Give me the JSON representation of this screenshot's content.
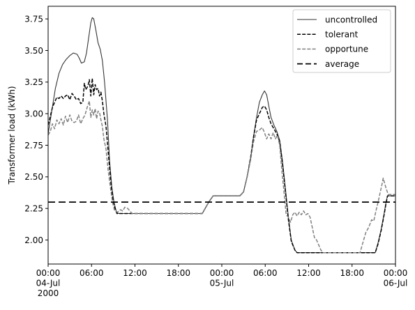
{
  "chart_data": {
    "type": "line",
    "title": "",
    "xlabel": "",
    "ylabel": "Transformer load (kWh)",
    "x_unit": "hours from 00:00 04-Jul 2000",
    "xlim": [
      0,
      48
    ],
    "ylim": [
      1.81,
      3.85
    ],
    "grid": false,
    "legend_position": "top-right",
    "x_ticks": [
      {
        "x": 0,
        "lines": [
          "00:00",
          "04-Jul",
          "2000"
        ]
      },
      {
        "x": 6,
        "lines": [
          "06:00"
        ]
      },
      {
        "x": 12,
        "lines": [
          "12:00"
        ]
      },
      {
        "x": 18,
        "lines": [
          "18:00"
        ]
      },
      {
        "x": 24,
        "lines": [
          "00:00",
          "05-Jul"
        ]
      },
      {
        "x": 30,
        "lines": [
          "06:00"
        ]
      },
      {
        "x": 36,
        "lines": [
          "12:00"
        ]
      },
      {
        "x": 42,
        "lines": [
          "18:00"
        ]
      },
      {
        "x": 48,
        "lines": [
          "00:00",
          "06-Jul"
        ]
      }
    ],
    "y_ticks": [
      2.0,
      2.25,
      2.5,
      2.75,
      3.0,
      3.25,
      3.5,
      3.75
    ],
    "y_tick_labels": [
      "2.00",
      "2.25",
      "2.50",
      "2.75",
      "3.00",
      "3.25",
      "3.50",
      "3.75"
    ],
    "series": [
      {
        "name": "uncontrolled",
        "color": "#333333",
        "style": "solid",
        "points": [
          [
            0,
            2.84
          ],
          [
            0.5,
            3.02
          ],
          [
            1,
            3.2
          ],
          [
            1.5,
            3.32
          ],
          [
            2,
            3.39
          ],
          [
            2.5,
            3.43
          ],
          [
            3,
            3.46
          ],
          [
            3.5,
            3.48
          ],
          [
            4,
            3.47
          ],
          [
            4.3,
            3.44
          ],
          [
            4.6,
            3.4
          ],
          [
            5,
            3.41
          ],
          [
            5.3,
            3.48
          ],
          [
            5.6,
            3.6
          ],
          [
            5.9,
            3.72
          ],
          [
            6.1,
            3.76
          ],
          [
            6.3,
            3.75
          ],
          [
            6.6,
            3.66
          ],
          [
            6.9,
            3.56
          ],
          [
            7.2,
            3.51
          ],
          [
            7.5,
            3.42
          ],
          [
            7.8,
            3.25
          ],
          [
            8.2,
            2.95
          ],
          [
            8.5,
            2.62
          ],
          [
            8.8,
            2.42
          ],
          [
            9.1,
            2.3
          ],
          [
            9.4,
            2.23
          ],
          [
            9.7,
            2.21
          ],
          [
            12,
            2.21
          ],
          [
            16,
            2.21
          ],
          [
            20,
            2.21
          ],
          [
            21.3,
            2.21
          ],
          [
            22.2,
            2.3
          ],
          [
            22.8,
            2.35
          ],
          [
            26.5,
            2.35
          ],
          [
            27,
            2.38
          ],
          [
            27.5,
            2.5
          ],
          [
            28,
            2.65
          ],
          [
            28.4,
            2.82
          ],
          [
            28.8,
            2.97
          ],
          [
            29.2,
            3.09
          ],
          [
            29.6,
            3.15
          ],
          [
            29.9,
            3.18
          ],
          [
            30.2,
            3.15
          ],
          [
            30.5,
            3.06
          ],
          [
            30.8,
            2.97
          ],
          [
            31.2,
            2.91
          ],
          [
            31.6,
            2.86
          ],
          [
            32,
            2.79
          ],
          [
            32.4,
            2.62
          ],
          [
            32.8,
            2.4
          ],
          [
            33.2,
            2.18
          ],
          [
            33.6,
            2.0
          ],
          [
            34.1,
            1.92
          ],
          [
            34.4,
            1.9
          ],
          [
            38,
            1.9
          ],
          [
            42,
            1.9
          ],
          [
            45.2,
            1.9
          ],
          [
            45.6,
            1.98
          ],
          [
            46,
            2.08
          ],
          [
            46.4,
            2.2
          ],
          [
            46.7,
            2.3
          ],
          [
            46.9,
            2.35
          ],
          [
            48,
            2.35
          ]
        ]
      },
      {
        "name": "tolerant",
        "color": "#000000",
        "style": "dashed",
        "points": [
          [
            0,
            2.91
          ],
          [
            0.3,
            2.98
          ],
          [
            0.6,
            3.05
          ],
          [
            0.9,
            3.09
          ],
          [
            1.2,
            3.13
          ],
          [
            1.5,
            3.12
          ],
          [
            1.8,
            3.14
          ],
          [
            2.1,
            3.12
          ],
          [
            2.4,
            3.14
          ],
          [
            2.7,
            3.15
          ],
          [
            3,
            3.11
          ],
          [
            3.3,
            3.16
          ],
          [
            3.6,
            3.14
          ],
          [
            3.9,
            3.11
          ],
          [
            4.2,
            3.12
          ],
          [
            4.5,
            3.08
          ],
          [
            4.8,
            3.09
          ],
          [
            5,
            3.24
          ],
          [
            5.2,
            3.19
          ],
          [
            5.5,
            3.22
          ],
          [
            5.7,
            3.27
          ],
          [
            5.9,
            3.14
          ],
          [
            6.1,
            3.28
          ],
          [
            6.3,
            3.15
          ],
          [
            6.5,
            3.23
          ],
          [
            6.7,
            3.19
          ],
          [
            6.9,
            3.2
          ],
          [
            7.1,
            3.14
          ],
          [
            7.3,
            3.17
          ],
          [
            7.5,
            3.1
          ],
          [
            7.7,
            3.0
          ],
          [
            8,
            2.9
          ],
          [
            8.3,
            2.7
          ],
          [
            8.6,
            2.5
          ],
          [
            8.9,
            2.34
          ],
          [
            9.2,
            2.26
          ],
          [
            9.5,
            2.21
          ],
          [
            12,
            2.21
          ],
          [
            16,
            2.21
          ],
          [
            20,
            2.21
          ],
          [
            21.3,
            2.21
          ],
          [
            22.2,
            2.3
          ],
          [
            22.8,
            2.35
          ],
          [
            26.5,
            2.35
          ],
          [
            27,
            2.38
          ],
          [
            27.5,
            2.5
          ],
          [
            28,
            2.66
          ],
          [
            28.4,
            2.82
          ],
          [
            28.8,
            2.95
          ],
          [
            29.2,
            3.0
          ],
          [
            29.6,
            3.05
          ],
          [
            29.9,
            3.06
          ],
          [
            30.2,
            3.03
          ],
          [
            30.5,
            2.97
          ],
          [
            30.8,
            2.92
          ],
          [
            31.2,
            2.88
          ],
          [
            31.6,
            2.84
          ],
          [
            32,
            2.78
          ],
          [
            32.4,
            2.6
          ],
          [
            32.8,
            2.38
          ],
          [
            33.2,
            2.16
          ],
          [
            33.6,
            1.99
          ],
          [
            34.1,
            1.92
          ],
          [
            34.4,
            1.9
          ],
          [
            38,
            1.9
          ],
          [
            42,
            1.9
          ],
          [
            45.2,
            1.9
          ],
          [
            45.6,
            1.97
          ],
          [
            46,
            2.07
          ],
          [
            46.4,
            2.19
          ],
          [
            46.7,
            2.29
          ],
          [
            46.9,
            2.35
          ],
          [
            48,
            2.35
          ]
        ]
      },
      {
        "name": "opportune",
        "color": "#808080",
        "style": "dashed",
        "points": [
          [
            0,
            2.83
          ],
          [
            0.3,
            2.86
          ],
          [
            0.6,
            2.92
          ],
          [
            0.9,
            2.88
          ],
          [
            1.2,
            2.95
          ],
          [
            1.5,
            2.92
          ],
          [
            1.8,
            2.96
          ],
          [
            2.1,
            2.91
          ],
          [
            2.4,
            2.98
          ],
          [
            2.7,
            2.93
          ],
          [
            3,
            2.99
          ],
          [
            3.3,
            2.94
          ],
          [
            3.6,
            2.93
          ],
          [
            3.9,
            2.94
          ],
          [
            4.2,
            2.99
          ],
          [
            4.5,
            2.92
          ],
          [
            4.8,
            2.96
          ],
          [
            5.1,
            2.99
          ],
          [
            5.4,
            3.05
          ],
          [
            5.7,
            3.1
          ],
          [
            5.9,
            2.97
          ],
          [
            6.1,
            3.03
          ],
          [
            6.3,
            2.99
          ],
          [
            6.5,
            3.04
          ],
          [
            6.7,
            2.96
          ],
          [
            6.9,
            3.02
          ],
          [
            7.1,
            3.01
          ],
          [
            7.3,
            2.95
          ],
          [
            7.5,
            2.9
          ],
          [
            7.7,
            2.8
          ],
          [
            8,
            2.72
          ],
          [
            8.3,
            2.55
          ],
          [
            8.6,
            2.42
          ],
          [
            8.9,
            2.3
          ],
          [
            9.2,
            2.23
          ],
          [
            9.6,
            2.22
          ],
          [
            10,
            2.24
          ],
          [
            10.3,
            2.23
          ],
          [
            10.6,
            2.26
          ],
          [
            11,
            2.25
          ],
          [
            11.3,
            2.23
          ],
          [
            11.6,
            2.21
          ],
          [
            12,
            2.21
          ],
          [
            16,
            2.21
          ],
          [
            20,
            2.21
          ],
          [
            21.3,
            2.21
          ],
          [
            22.2,
            2.3
          ],
          [
            22.8,
            2.35
          ],
          [
            26.5,
            2.35
          ],
          [
            27,
            2.38
          ],
          [
            27.5,
            2.5
          ],
          [
            28,
            2.64
          ],
          [
            28.4,
            2.78
          ],
          [
            28.8,
            2.86
          ],
          [
            29.2,
            2.87
          ],
          [
            29.6,
            2.89
          ],
          [
            29.9,
            2.85
          ],
          [
            30.2,
            2.8
          ],
          [
            30.5,
            2.84
          ],
          [
            30.8,
            2.8
          ],
          [
            31.1,
            2.85
          ],
          [
            31.4,
            2.8
          ],
          [
            31.7,
            2.83
          ],
          [
            32,
            2.75
          ],
          [
            32.3,
            2.55
          ],
          [
            32.6,
            2.38
          ],
          [
            32.9,
            2.2
          ],
          [
            33.2,
            2.18
          ],
          [
            33.5,
            2.14
          ],
          [
            33.8,
            2.2
          ],
          [
            34.1,
            2.22
          ],
          [
            34.4,
            2.19
          ],
          [
            34.7,
            2.22
          ],
          [
            35,
            2.2
          ],
          [
            35.3,
            2.23
          ],
          [
            35.6,
            2.2
          ],
          [
            35.9,
            2.21
          ],
          [
            36.2,
            2.18
          ],
          [
            36.5,
            2.1
          ],
          [
            36.8,
            2.02
          ],
          [
            37.1,
            2.0
          ],
          [
            37.4,
            1.96
          ],
          [
            37.7,
            1.92
          ],
          [
            38,
            1.9
          ],
          [
            42,
            1.9
          ],
          [
            43.1,
            1.9
          ],
          [
            43.5,
            1.98
          ],
          [
            43.9,
            2.06
          ],
          [
            44.3,
            2.1
          ],
          [
            44.7,
            2.16
          ],
          [
            45,
            2.15
          ],
          [
            45.3,
            2.23
          ],
          [
            45.6,
            2.3
          ],
          [
            45.9,
            2.38
          ],
          [
            46.1,
            2.43
          ],
          [
            46.3,
            2.49
          ],
          [
            46.5,
            2.45
          ],
          [
            46.7,
            2.41
          ],
          [
            47,
            2.36
          ],
          [
            47.4,
            2.36
          ],
          [
            48,
            2.36
          ]
        ]
      },
      {
        "name": "average",
        "color": "#000000",
        "style": "long-dashed",
        "points": [
          [
            0,
            2.3
          ],
          [
            48,
            2.3
          ]
        ]
      }
    ]
  }
}
